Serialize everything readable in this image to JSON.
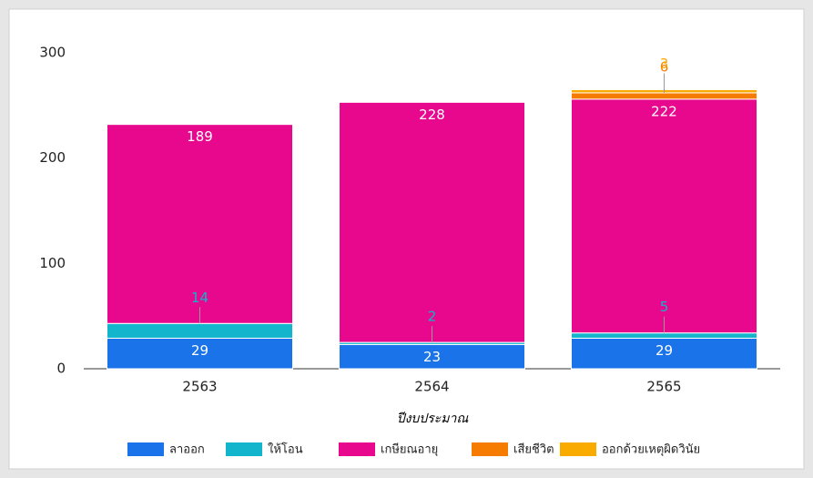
{
  "chart_data": {
    "type": "stacked_bar",
    "categories": [
      "2563",
      "2564",
      "2565"
    ],
    "x_label": "ปีงบประมาณ",
    "series": [
      {
        "name": "ลาออก",
        "color": "#1a73e8",
        "values": [
          29,
          23,
          29
        ]
      },
      {
        "name": "ให้โอน",
        "color": "#12b5cb",
        "values": [
          14,
          2,
          5
        ]
      },
      {
        "name": "เกษียณอายุ",
        "color": "#e8088e",
        "values": [
          189,
          228,
          222
        ]
      },
      {
        "name": "เสียชีวิต",
        "color": "#f57c00",
        "values": [
          null,
          null,
          6
        ]
      },
      {
        "name": "ออกด้วยเหตุผิดวินัย",
        "color": "#f9ab00",
        "values": [
          null,
          null,
          3
        ]
      }
    ],
    "ylim": [
      0,
      300
    ],
    "yticks": [
      0,
      100,
      200,
      300
    ],
    "grid": false,
    "legend": "bottom"
  }
}
